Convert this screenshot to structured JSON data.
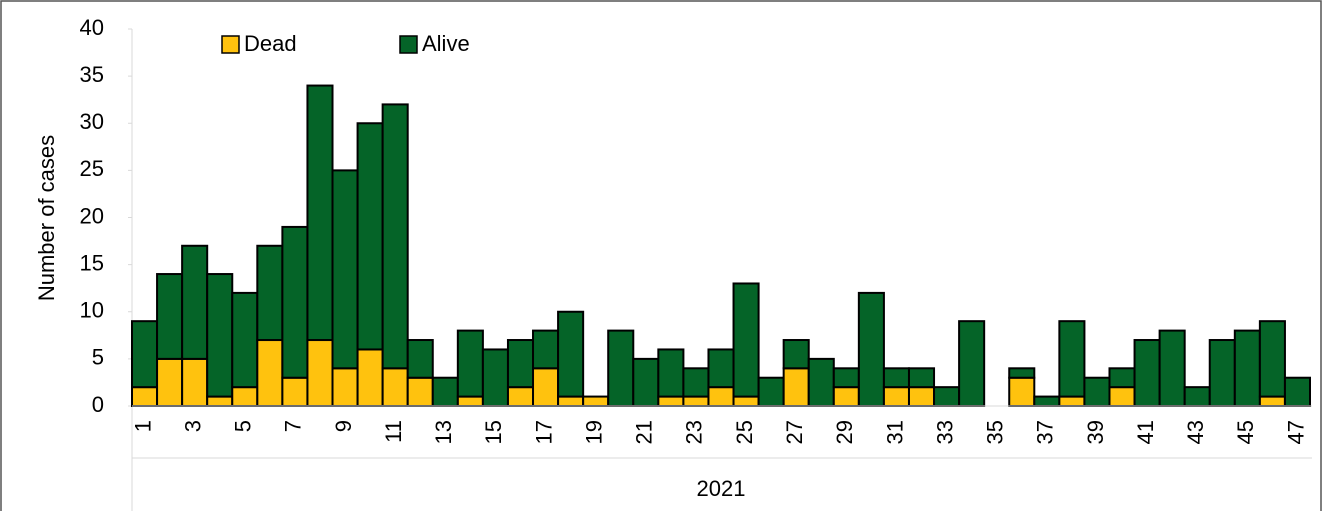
{
  "chart_data": {
    "type": "stacked_bar",
    "y_label": "Number of cases",
    "x_group_label": "2021",
    "categories": [
      "1",
      null,
      "3",
      null,
      "5",
      null,
      "7",
      null,
      "9",
      null,
      "11",
      null,
      "13",
      null,
      "15",
      null,
      "17",
      null,
      "19",
      null,
      "21",
      null,
      "23",
      null,
      "25",
      null,
      "27",
      null,
      "29",
      null,
      "31",
      null,
      "33",
      null,
      "35",
      null,
      "37",
      null,
      "39",
      null,
      "41",
      null,
      "43",
      null,
      "45",
      null,
      "47"
    ],
    "series": [
      {
        "name": "Dead",
        "color": "#ffc20e",
        "values": [
          2,
          5,
          5,
          1,
          2,
          7,
          3,
          7,
          4,
          6,
          4,
          3,
          0,
          1,
          0,
          2,
          4,
          1,
          1,
          0,
          0,
          1,
          1,
          2,
          1,
          0,
          4,
          0,
          2,
          0,
          2,
          2,
          0,
          0,
          0,
          3,
          0,
          1,
          0,
          2,
          0,
          0,
          0,
          0,
          0,
          1,
          0
        ]
      },
      {
        "name": "Alive",
        "color": "#056428",
        "values": [
          7,
          9,
          12,
          13,
          10,
          10,
          16,
          27,
          21,
          24,
          28,
          4,
          3,
          7,
          6,
          5,
          4,
          9,
          0,
          8,
          5,
          5,
          3,
          4,
          12,
          3,
          3,
          5,
          2,
          12,
          2,
          2,
          2,
          9,
          0,
          1,
          1,
          8,
          3,
          2,
          7,
          8,
          2,
          7,
          8,
          8,
          3
        ]
      }
    ],
    "ylim": [
      0,
      40
    ],
    "yticks": [
      0,
      5,
      10,
      15,
      20,
      25,
      30,
      35,
      40
    ],
    "grid": false
  }
}
